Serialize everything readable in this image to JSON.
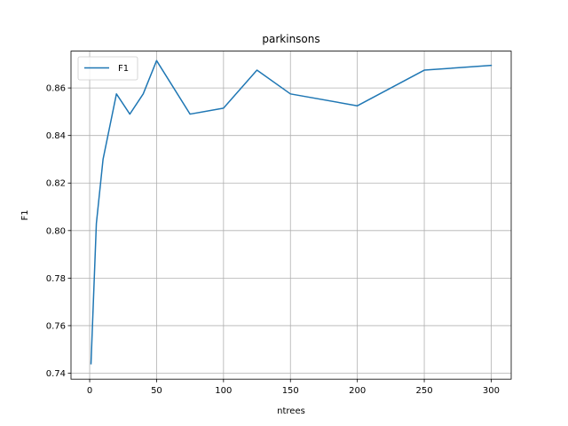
{
  "chart_data": {
    "type": "line",
    "title": "parkinsons",
    "xlabel": "ntrees",
    "ylabel": "F1",
    "xlim": [
      -13.95,
      314.95
    ],
    "ylim": [
      0.7375,
      0.8755
    ],
    "xticks": [
      0,
      50,
      100,
      150,
      200,
      250,
      300
    ],
    "yticks": [
      0.74,
      0.76,
      0.78,
      0.8,
      0.82,
      0.84,
      0.86
    ],
    "ytick_labels": [
      "0.74",
      "0.76",
      "0.78",
      "0.80",
      "0.82",
      "0.84",
      "0.86"
    ],
    "grid": true,
    "legend_position": "upper-left",
    "series": [
      {
        "name": "F1",
        "color": "#1f77b4",
        "x": [
          1,
          5,
          10,
          20,
          30,
          40,
          50,
          75,
          100,
          125,
          150,
          200,
          250,
          300
        ],
        "y": [
          0.744,
          0.803,
          0.83,
          0.8575,
          0.849,
          0.8575,
          0.8715,
          0.849,
          0.8515,
          0.8675,
          0.8575,
          0.8525,
          0.8675,
          0.8695
        ]
      }
    ]
  }
}
